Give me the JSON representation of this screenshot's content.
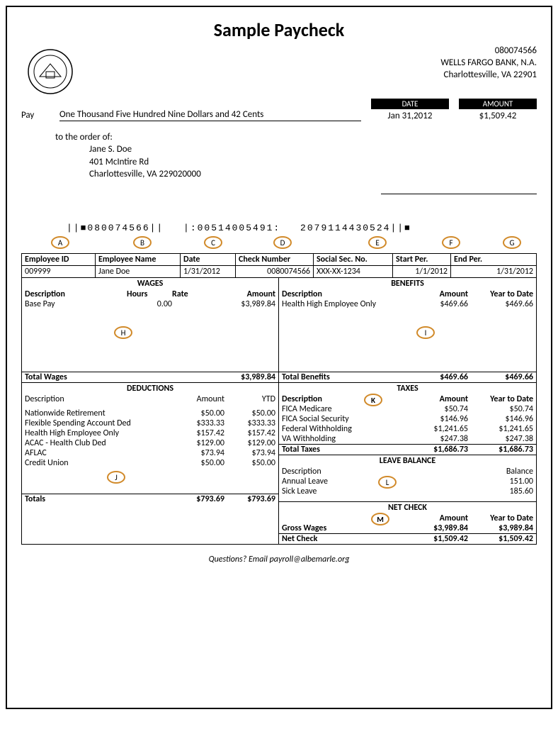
{
  "title": "Sample Paycheck",
  "check_number": "080074566",
  "bank": {
    "name": "WELLS FARGO BANK, N.A.",
    "city": "Charlottesville, VA 22901"
  },
  "labels": {
    "date": "DATE",
    "amount": "AMOUNT",
    "pay": "Pay",
    "to_order": "to the order of:",
    "questions": "Questions?  Email payroll@albemarle.org"
  },
  "check": {
    "pay_words": "One Thousand Five Hundred Nine Dollars and 42 Cents",
    "date": "Jan 31,2012",
    "amount": "$1,509.42"
  },
  "payee": {
    "name": "Jane S. Doe",
    "street": "401 McIntire Rd",
    "citystate": "Charlottesville, VA  229020000"
  },
  "micr": "||■080074566||   |:00514005491:   2079114430524||■",
  "markers": {
    "A": "A",
    "B": "B",
    "C": "C",
    "D": "D",
    "E": "E",
    "F": "F",
    "G": "G",
    "H": "H",
    "I": "I",
    "J": "J",
    "K": "K",
    "L": "L",
    "M": "M"
  },
  "info": {
    "headers": [
      "Employee ID",
      "Employee Name",
      "Date",
      "Check Number",
      "Social Sec. No.",
      "Start Per.",
      "End Per."
    ],
    "values": [
      "009999",
      "Jane Doe",
      "1/31/2012",
      "0080074566",
      "XXX-XX-1234",
      "1/1/2012",
      "1/31/2012"
    ]
  },
  "wages": {
    "title": "WAGES",
    "headers": [
      "Description",
      "Hours",
      "Rate",
      "Amount"
    ],
    "rows": [
      {
        "desc": "Base Pay",
        "hours": "0.00",
        "rate": "",
        "amount": "$3,989.84"
      }
    ],
    "total_label": "Total Wages",
    "total_amount": "$3,989.84"
  },
  "benefits": {
    "title": "BENEFITS",
    "headers": [
      "Description",
      "Amount",
      "Year to Date"
    ],
    "rows": [
      {
        "desc": "Health High Employee Only",
        "amount": "$469.66",
        "ytd": "$469.66"
      }
    ],
    "total_label": "Total Benefits",
    "total_amount": "$469.66",
    "total_ytd": "$469.66"
  },
  "deductions": {
    "title": "DEDUCTIONS",
    "headers": [
      "Description",
      "Amount",
      "YTD"
    ],
    "rows": [
      {
        "desc": "Nationwide Retirement",
        "amount": "$50.00",
        "ytd": "$50.00"
      },
      {
        "desc": "Flexible Spending Account Ded",
        "amount": "$333.33",
        "ytd": "$333.33"
      },
      {
        "desc": "Health High Employee Only",
        "amount": "$157.42",
        "ytd": "$157.42"
      },
      {
        "desc": "ACAC - Health Club Ded",
        "amount": "$129.00",
        "ytd": "$129.00"
      },
      {
        "desc": "AFLAC",
        "amount": "$73.94",
        "ytd": "$73.94"
      },
      {
        "desc": "Credit Union",
        "amount": "$50.00",
        "ytd": "$50.00"
      }
    ],
    "total_label": "Totals",
    "total_amount": "$793.69",
    "total_ytd": "$793.69"
  },
  "taxes": {
    "title": "TAXES",
    "headers": [
      "Description",
      "Amount",
      "Year to Date"
    ],
    "rows": [
      {
        "desc": "FICA Medicare",
        "amount": "$50.74",
        "ytd": "$50.74"
      },
      {
        "desc": "FICA Social Security",
        "amount": "$146.96",
        "ytd": "$146.96"
      },
      {
        "desc": "Federal Withholding",
        "amount": "$1,241.65",
        "ytd": "$1,241.65"
      },
      {
        "desc": "VA Withholding",
        "amount": "$247.38",
        "ytd": "$247.38"
      }
    ],
    "total_label": "Total Taxes",
    "total_amount": "$1,686.73",
    "total_ytd": "$1,686.73"
  },
  "leave": {
    "title": "LEAVE BALANCE",
    "headers": [
      "Description",
      "Balance"
    ],
    "rows": [
      {
        "desc": "Annual Leave",
        "bal": "151.00"
      },
      {
        "desc": "Sick Leave",
        "bal": "185.60"
      }
    ]
  },
  "netcheck": {
    "title": "NET CHECK",
    "headers": [
      "",
      "Amount",
      "Year to Date"
    ],
    "rows": [
      {
        "desc": "Gross Wages",
        "amount": "$3,989.84",
        "ytd": "$3,989.84"
      },
      {
        "desc": "Net Check",
        "amount": "$1,509.42",
        "ytd": "$1,509.42"
      }
    ]
  },
  "colors": {
    "marker_border": "#d18a2a"
  }
}
